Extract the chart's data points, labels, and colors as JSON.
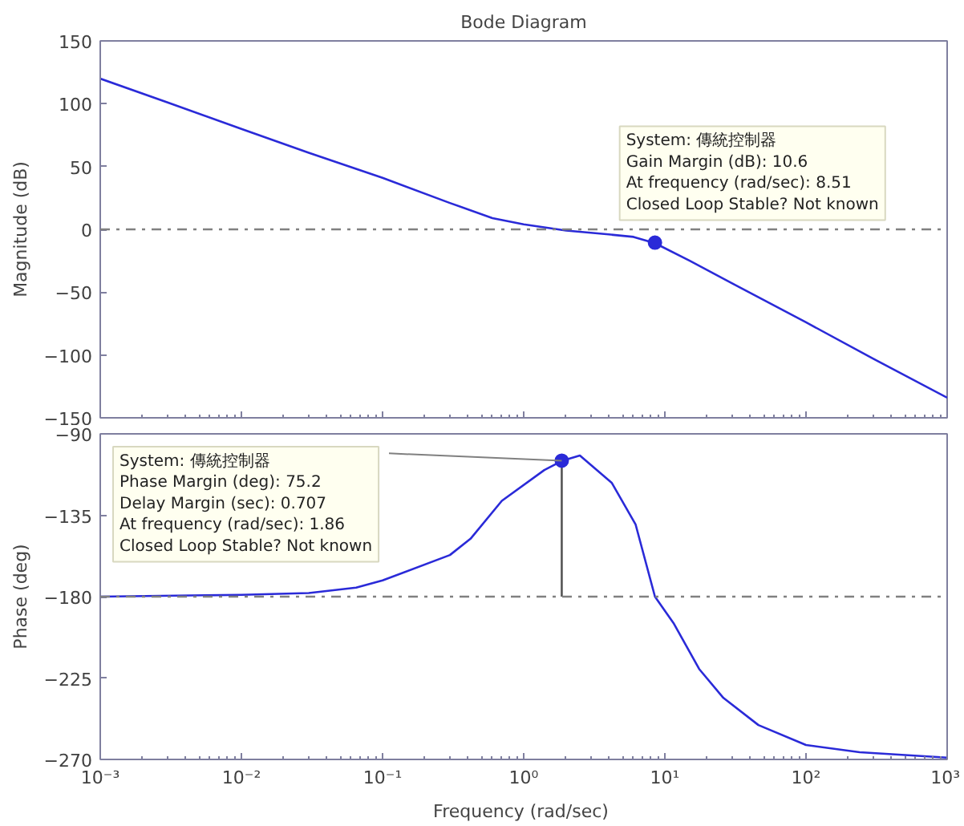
{
  "chart_data": [
    {
      "type": "line",
      "title": "Bode Diagram",
      "ylabel": "Magnitude (dB)",
      "log": "x",
      "grid": false,
      "tick_labels": "y",
      "xlim": [
        0.001,
        1000
      ],
      "xticks": [
        {
          "value": 0.001,
          "label": null
        },
        {
          "value": 0.01,
          "label": null
        },
        {
          "value": 0.1,
          "label": null
        },
        {
          "value": 1,
          "label": null
        },
        {
          "value": 10,
          "label": null
        },
        {
          "value": 100,
          "label": null
        },
        {
          "value": 1000,
          "label": null
        }
      ],
      "ylim": [
        -150,
        150
      ],
      "yticks": [
        -150,
        -100,
        -50,
        0,
        50,
        100,
        150
      ],
      "series": [
        {
          "color": "#2a2ad8",
          "x": [
            0.001,
            0.003,
            0.01,
            0.03,
            0.1,
            0.3,
            0.6,
            1,
            2,
            4,
            6,
            8.51,
            15,
            30,
            100,
            300,
            1000
          ],
          "values": [
            120,
            101,
            80,
            61,
            41,
            21,
            9,
            4,
            -1,
            -4,
            -6,
            -11,
            -25,
            -43,
            -74,
            -103,
            -134
          ]
        }
      ],
      "ref_lines": [
        {
          "axis": "y",
          "value": 0,
          "color": "#808080",
          "line_style": "dashdot"
        }
      ],
      "annotations": [
        {
          "text": "System: 傳統控制器\nGain Margin (dB): 10.6\nAt frequency (rad/sec): 8.51\nClosed Loop Stable? Not known",
          "x": 8.51,
          "y": -10.6
        }
      ]
    },
    {
      "type": "line",
      "xlabel": "Frequency  (rad/sec)",
      "ylabel": "Phase (deg)",
      "log": "x",
      "grid": false,
      "xlim": [
        0.001,
        1000
      ],
      "xticks": [
        {
          "value": 0.001,
          "label": "10⁻³"
        },
        {
          "value": 0.01,
          "label": "10⁻²"
        },
        {
          "value": 0.1,
          "label": "10⁻¹"
        },
        {
          "value": 1,
          "label": "10⁰"
        },
        {
          "value": 10,
          "label": "10¹"
        },
        {
          "value": 100,
          "label": "10²"
        },
        {
          "value": 1000,
          "label": "10³"
        }
      ],
      "ylim": [
        -270,
        -90
      ],
      "yticks": [
        -270,
        -225,
        -180,
        -135,
        -90
      ],
      "series": [
        {
          "color": "#2a2ad8",
          "x": [
            0.001,
            0.01,
            0.03,
            0.065,
            0.1,
            0.3,
            0.42,
            0.7,
            1.4,
            1.86,
            2.5,
            4.2,
            6.2,
            8.51,
            11.6,
            17.5,
            26,
            46,
            100,
            240,
            1000
          ],
          "values": [
            -180,
            -179,
            -178,
            -175,
            -171,
            -157,
            -148,
            -127,
            -110,
            -105,
            -102,
            -117,
            -140,
            -180,
            -195,
            -220,
            -236,
            -251,
            -262,
            -266,
            -269
          ]
        },
        {
          "color": "#555555",
          "x": [
            1.86,
            1.86
          ],
          "values": [
            -180,
            -105
          ]
        }
      ],
      "ref_lines": [
        {
          "axis": "y",
          "value": -180,
          "color": "#808080",
          "line_style": "dashdot"
        }
      ],
      "annotations": [
        {
          "text": "System: 傳統控制器\nPhase Margin (deg): 75.2\nDelay Margin (sec): 0.707\nAt frequency (rad/sec): 1.86\nClosed Loop Stable? Not known",
          "x": 1.86,
          "y": -104.8
        }
      ]
    }
  ]
}
